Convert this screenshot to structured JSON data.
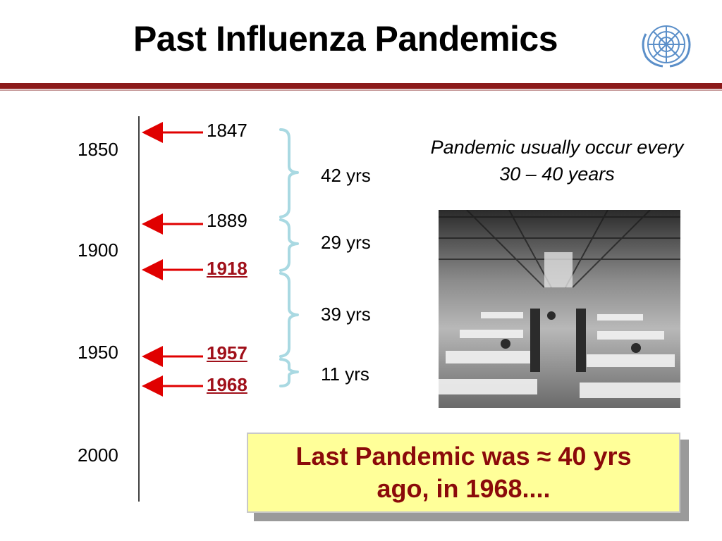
{
  "title": "Past Influenza Pandemics",
  "logo": "un-emblem",
  "timeline": {
    "ticks": [
      "1850",
      "1900",
      "1950",
      "2000"
    ],
    "years": [
      "1847",
      "1889",
      "1918",
      "1957",
      "1968"
    ],
    "highlighted_years": [
      "1918",
      "1957",
      "1968"
    ],
    "intervals": [
      "42 yrs",
      "29 yrs",
      "39 yrs",
      "11 yrs"
    ],
    "arrow_color": "#e00000",
    "highlight_color": "#a0101a",
    "brace_color": "#a9d9e2"
  },
  "note": "Pandemic usually occur every 30 – 40 years",
  "photo": "historical black-and-white photo of a 1918 influenza emergency hospital ward with rows of beds",
  "callout": "Last Pandemic was ≈ 40 yrs ago, in 1968....",
  "colors": {
    "title_rule": "#8b1a1a",
    "callout_bg": "#ffff99",
    "callout_text": "#8b0a0a"
  }
}
